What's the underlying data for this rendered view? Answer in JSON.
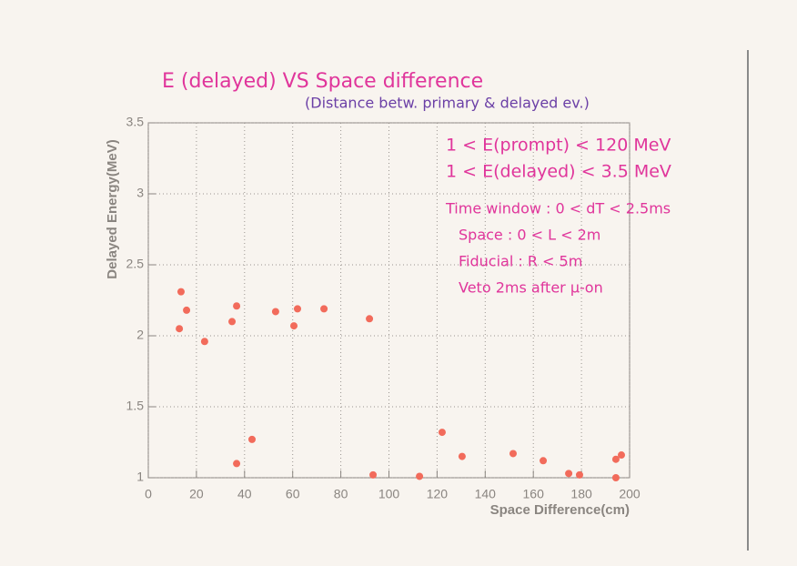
{
  "chart_data": {
    "type": "scatter",
    "title": "E (delayed) VS Space difference",
    "subtitle": "(Distance betw. primary & delayed ev.)",
    "annotations": [
      "1 < E(prompt) < 120 MeV",
      "1 < E(delayed) < 3.5 MeV",
      "Time window : 0 < dT < 2.5ms",
      "Space : 0 < L < 2m",
      "Fiducial : R < 5m",
      "Veto 2ms after μ-on"
    ],
    "x_label": "Space Difference(cm)",
    "y_label": "Delayed Energy(MeV)",
    "xlim": [
      0,
      200
    ],
    "ylim": [
      1,
      3.5
    ],
    "xticks": [
      0,
      20,
      40,
      60,
      80,
      100,
      120,
      140,
      160,
      180,
      200
    ],
    "yticks": [
      1,
      1.5,
      2,
      2.5,
      3,
      3.5
    ],
    "grid": true,
    "color": "#f26b5b",
    "x": [
      12.9,
      13.6,
      15.9,
      23.4,
      34.8,
      36.7,
      36.7,
      43.1,
      52.9,
      60.5,
      62.0,
      73.0,
      91.9,
      93.4,
      112.7,
      122.1,
      130.4,
      151.6,
      164.1,
      174.7,
      179.2,
      194.3,
      194.3,
      196.6
    ],
    "y": [
      2.05,
      2.31,
      2.18,
      1.96,
      2.1,
      2.21,
      1.1,
      1.27,
      2.17,
      2.07,
      2.19,
      2.19,
      2.12,
      1.02,
      1.01,
      1.32,
      1.15,
      1.17,
      1.12,
      1.03,
      1.02,
      1.0,
      1.13,
      1.16
    ]
  }
}
